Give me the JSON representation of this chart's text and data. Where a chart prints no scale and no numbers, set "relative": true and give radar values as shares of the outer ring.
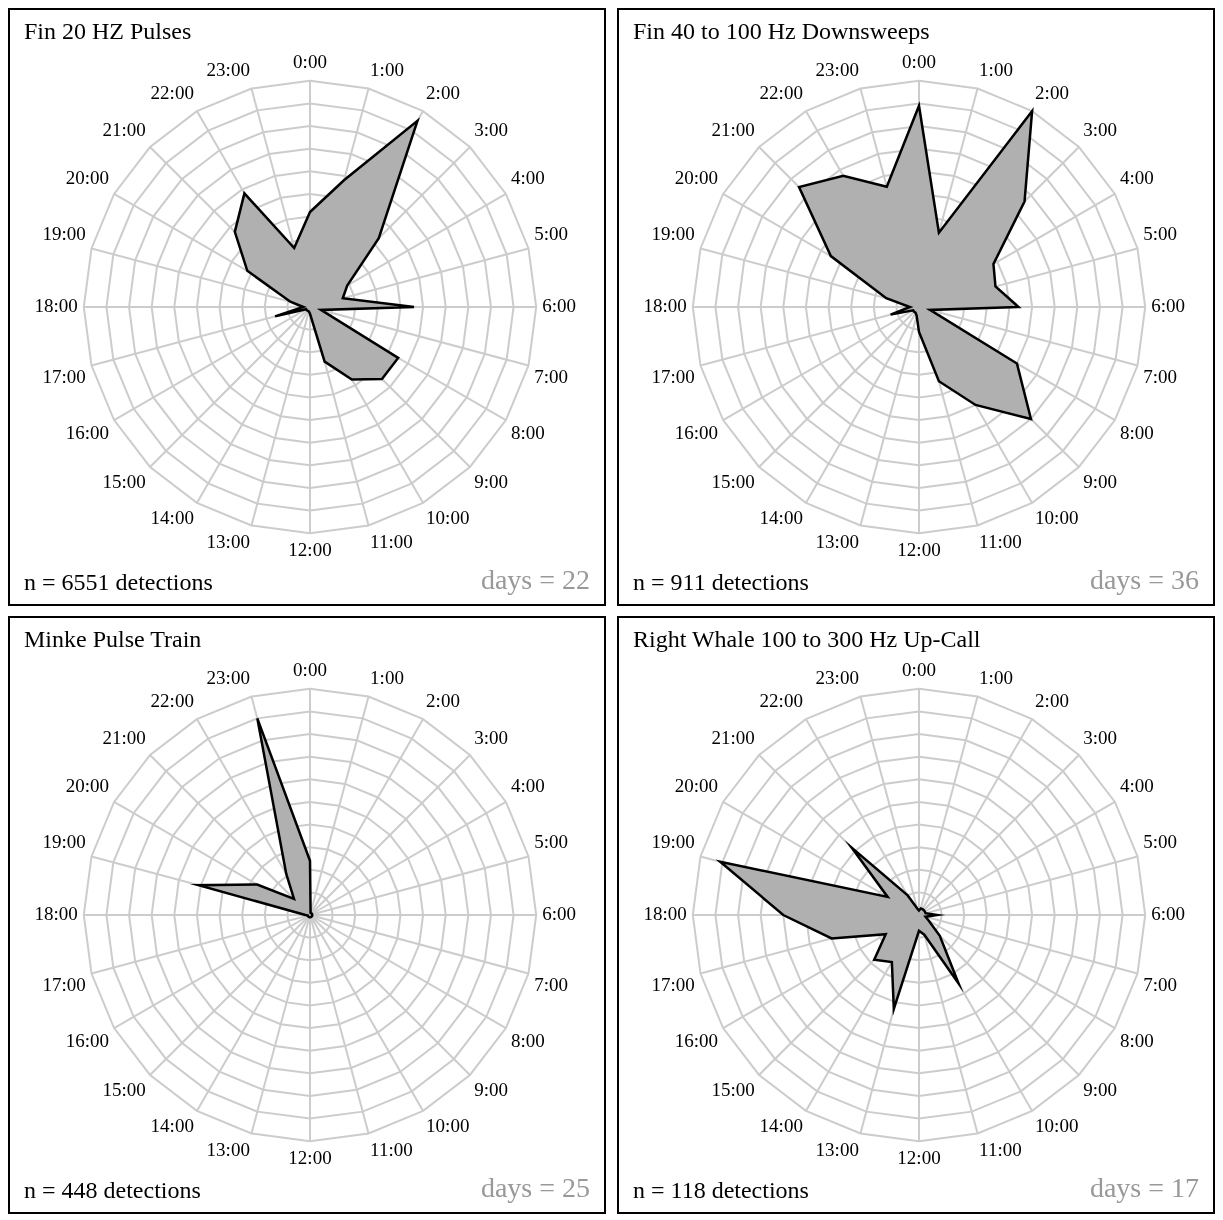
{
  "chart_data": [
    {
      "type": "radar",
      "title": "Fin 20 HZ Pulses",
      "categories": [
        "0:00",
        "1:00",
        "2:00",
        "3:00",
        "4:00",
        "5:00",
        "6:00",
        "7:00",
        "8:00",
        "9:00",
        "10:00",
        "11:00",
        "12:00",
        "13:00",
        "14:00",
        "15:00",
        "16:00",
        "17:00",
        "18:00",
        "19:00",
        "20:00",
        "21:00",
        "22:00",
        "23:00"
      ],
      "relative": true,
      "grid": true,
      "series": [
        {
          "color": "#b0b0b0",
          "values": [
            0.42,
            0.58,
            0.95,
            0.43,
            0.19,
            0.15,
            0.46,
            0.05,
            0.45,
            0.45,
            0.37,
            0.25,
            0.03,
            0.02,
            0.02,
            0.02,
            0.02,
            0.16,
            0.03,
            0.09,
            0.32,
            0.47,
            0.58,
            0.27
          ]
        }
      ],
      "annotations": [
        "n = 6551 detections",
        "days = 22"
      ]
    },
    {
      "type": "radar",
      "title": "Fin 40 to 100 Hz Downsweeps",
      "categories": [
        "0:00",
        "1:00",
        "2:00",
        "3:00",
        "4:00",
        "5:00",
        "6:00",
        "7:00",
        "8:00",
        "9:00",
        "10:00",
        "11:00",
        "12:00",
        "13:00",
        "14:00",
        "15:00",
        "16:00",
        "17:00",
        "18:00",
        "19:00",
        "20:00",
        "21:00",
        "22:00",
        "23:00"
      ],
      "relative": true,
      "grid": true,
      "series": [
        {
          "color": "#b0b0b0",
          "values": [
            0.89,
            0.34,
            1,
            0.66,
            0.38,
            0.35,
            0.44,
            0.05,
            0.5,
            0.7,
            0.5,
            0.34,
            0.11,
            0.04,
            0.03,
            0.03,
            0.03,
            0.13,
            0.04,
            0.15,
            0.45,
            0.75,
            0.67,
            0.55
          ]
        }
      ],
      "annotations": [
        "n = 911 detections",
        "days = 36"
      ]
    },
    {
      "type": "radar",
      "title": "Minke Pulse Train",
      "categories": [
        "0:00",
        "1:00",
        "2:00",
        "3:00",
        "4:00",
        "5:00",
        "6:00",
        "7:00",
        "8:00",
        "9:00",
        "10:00",
        "11:00",
        "12:00",
        "13:00",
        "14:00",
        "15:00",
        "16:00",
        "17:00",
        "18:00",
        "19:00",
        "20:00",
        "21:00",
        "22:00",
        "23:00"
      ],
      "relative": true,
      "grid": true,
      "series": [
        {
          "color": "#b0b0b0",
          "values": [
            0.24,
            0.01,
            0.01,
            0.01,
            0.01,
            0.01,
            0.01,
            0.01,
            0.01,
            0.01,
            0.01,
            0.01,
            0.01,
            0.01,
            0.01,
            0.01,
            0.01,
            0.01,
            0.02,
            0.51,
            0.27,
            0.1,
            0.21,
            0.9
          ]
        }
      ],
      "annotations": [
        "n = 448 detections",
        "days = 25"
      ]
    },
    {
      "type": "radar",
      "title": "Right Whale 100 to 300 Hz Up-Call",
      "categories": [
        "0:00",
        "1:00",
        "2:00",
        "3:00",
        "4:00",
        "5:00",
        "6:00",
        "7:00",
        "8:00",
        "9:00",
        "10:00",
        "11:00",
        "12:00",
        "13:00",
        "14:00",
        "15:00",
        "16:00",
        "17:00",
        "18:00",
        "19:00",
        "20:00",
        "21:00",
        "22:00",
        "23:00"
      ],
      "relative": true,
      "grid": true,
      "series": [
        {
          "color": "#b0b0b0",
          "values": [
            0.02,
            0.03,
            0.03,
            0.03,
            0.03,
            0.03,
            0.08,
            0.03,
            0.05,
            0.13,
            0.35,
            0.09,
            0.07,
            0.43,
            0.24,
            0.28,
            0.17,
            0.4,
            0.6,
            0.91,
            0.16,
            0.42,
            0.1,
            0.03
          ]
        }
      ],
      "annotations": [
        "n = 118 detections",
        "days = 17"
      ]
    }
  ]
}
